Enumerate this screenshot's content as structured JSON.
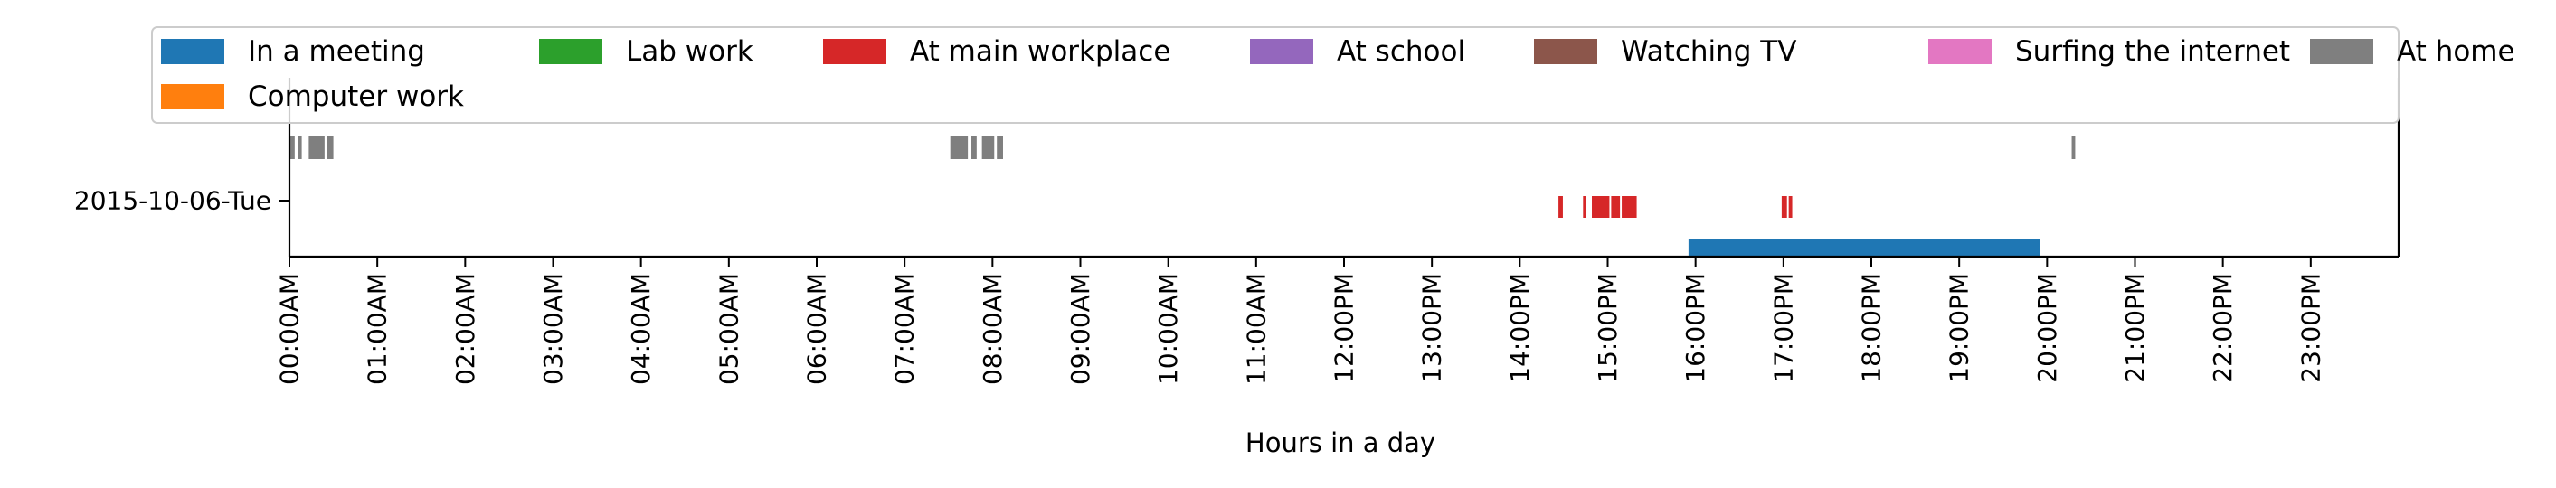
{
  "chart_data": {
    "type": "bar",
    "orientation": "horizontal-timeline",
    "title": "",
    "xlabel": "Hours in a day",
    "ylabel": "",
    "x_unit": "hours",
    "xlim": [
      0,
      24
    ],
    "x_ticks": [
      0,
      1,
      2,
      3,
      4,
      5,
      6,
      7,
      8,
      9,
      10,
      11,
      12,
      13,
      14,
      15,
      16,
      17,
      18,
      19,
      20,
      21,
      22,
      23
    ],
    "x_tick_labels": [
      "00:00AM",
      "01:00AM",
      "02:00AM",
      "03:00AM",
      "04:00AM",
      "05:00AM",
      "06:00AM",
      "07:00AM",
      "08:00AM",
      "09:00AM",
      "10:00AM",
      "11:00AM",
      "12:00PM",
      "13:00PM",
      "14:00PM",
      "15:00PM",
      "16:00PM",
      "17:00PM",
      "18:00PM",
      "19:00PM",
      "20:00PM",
      "21:00PM",
      "22:00PM",
      "23:00PM"
    ],
    "y_tick_labels": [
      "2015-10-06-Tue"
    ],
    "grid": false,
    "legend": {
      "placement": "top",
      "columns": 7
    },
    "series": [
      {
        "name": "In a meeting",
        "color": "#1f77b4",
        "lane": "bottom",
        "intervals": [
          [
            15.92,
            19.92
          ]
        ]
      },
      {
        "name": "Computer work",
        "color": "#ff7f0e",
        "lane": "none",
        "intervals": []
      },
      {
        "name": "Lab work",
        "color": "#2ca02c",
        "lane": "none",
        "intervals": []
      },
      {
        "name": "At main workplace",
        "color": "#d62728",
        "lane": "middle",
        "intervals": [
          [
            14.44,
            14.49
          ],
          [
            14.72,
            14.75
          ],
          [
            14.82,
            15.02
          ],
          [
            15.04,
            15.14
          ],
          [
            15.16,
            15.33
          ],
          [
            16.98,
            17.04
          ],
          [
            17.06,
            17.1
          ]
        ]
      },
      {
        "name": "At school",
        "color": "#9467bd",
        "lane": "none",
        "intervals": []
      },
      {
        "name": "Watching TV",
        "color": "#8c564b",
        "lane": "none",
        "intervals": []
      },
      {
        "name": "Surfing the internet",
        "color": "#e377c2",
        "lane": "none",
        "intervals": []
      },
      {
        "name": "At home",
        "color": "#7f7f7f",
        "lane": "top",
        "intervals": [
          [
            0.0,
            0.06
          ],
          [
            0.1,
            0.14
          ],
          [
            0.22,
            0.4
          ],
          [
            0.43,
            0.5
          ],
          [
            7.52,
            7.72
          ],
          [
            7.76,
            7.82
          ],
          [
            7.88,
            8.02
          ],
          [
            8.05,
            8.12
          ],
          [
            20.28,
            20.32
          ]
        ]
      }
    ]
  }
}
